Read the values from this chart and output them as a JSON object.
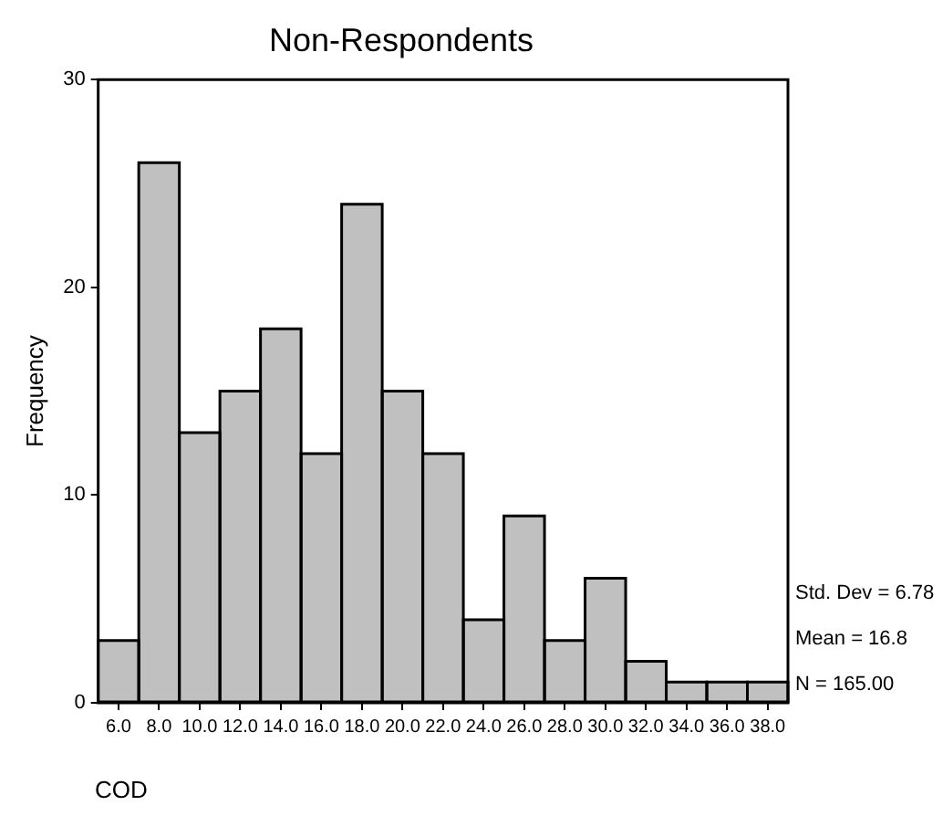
{
  "chart_data": {
    "type": "histogram",
    "title": "Non-Respondents",
    "xlabel": "COD",
    "ylabel": "Frequency",
    "bins": [
      5,
      7,
      9,
      11,
      13,
      15,
      17,
      19,
      21,
      23,
      25,
      27,
      29,
      31,
      33,
      35,
      37,
      39
    ],
    "values": [
      3,
      26,
      13,
      15,
      18,
      12,
      24,
      15,
      12,
      4,
      9,
      3,
      6,
      2,
      1,
      1,
      1
    ],
    "color": "#c0c0c0",
    "xlim": [
      5,
      39
    ],
    "xticks": [
      {
        "value": 6,
        "label": "6.0"
      },
      {
        "value": 8,
        "label": "8.0"
      },
      {
        "value": 10,
        "label": "10.0"
      },
      {
        "value": 12,
        "label": "12.0"
      },
      {
        "value": 14,
        "label": "14.0"
      },
      {
        "value": 16,
        "label": "16.0"
      },
      {
        "value": 18,
        "label": "18.0"
      },
      {
        "value": 20,
        "label": "20.0"
      },
      {
        "value": 22,
        "label": "22.0"
      },
      {
        "value": 24,
        "label": "24.0"
      },
      {
        "value": 26,
        "label": "26.0"
      },
      {
        "value": 28,
        "label": "28.0"
      },
      {
        "value": 30,
        "label": "30.0"
      },
      {
        "value": 32,
        "label": "32.0"
      },
      {
        "value": 34,
        "label": "34.0"
      },
      {
        "value": 36,
        "label": "36.0"
      },
      {
        "value": 38,
        "label": "38.0"
      }
    ],
    "ylim": [
      0,
      30
    ],
    "yticks": [
      0,
      10,
      20,
      30
    ],
    "grid": false,
    "annotations": [
      "Std. Dev = 6.78",
      "Mean = 16.8",
      "N = 165.00"
    ]
  }
}
